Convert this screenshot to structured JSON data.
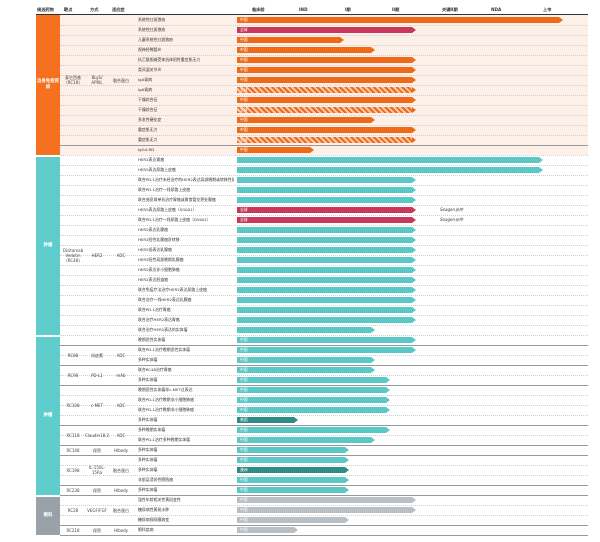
{
  "chart_data": {
    "type": "table",
    "title": "",
    "headers": [
      "候选药物",
      "靶点",
      "方式",
      "适应症",
      "临床前",
      "IND",
      "I期",
      "II期",
      "关键II期",
      "NDA",
      "上市"
    ],
    "phase_axis": [
      "临床前",
      "IND",
      "I期",
      "II期",
      "关键II期",
      "NDA",
      "上市"
    ],
    "groups": [
      {
        "name": "自身免疫疾病",
        "color": "#f5701f",
        "bar_color": "#ef6a18",
        "bg": "#fdf0e8"
      },
      {
        "name": "肿瘤",
        "color": "#5ecdcc",
        "bar_color": "#5bc8c8",
        "bg": "#ffffff"
      },
      {
        "name": "肿瘤",
        "color": "#5ecdcc",
        "bar_color": "#5bc8c8",
        "bg": "#ffffff"
      },
      {
        "name": "眼科",
        "color": "#9aa1a8",
        "bar_color": "#b8bfc5",
        "bg": "#ffffff"
      }
    ],
    "drug_rows": [
      {
        "drug": "泰它西普 (RC18)",
        "target": "BLyS/ APRIL",
        "modality": "融合蛋白",
        "from": 0,
        "to": 12
      },
      {
        "drug": "Disitamab Vedotin (RC48)",
        "target": "HER2",
        "modality": "ADC",
        "from": 15,
        "to": 32
      },
      {
        "drug": "RC88",
        "target": "间皮素",
        "modality": "ADC",
        "from": 33,
        "to": 34
      },
      {
        "drug": "RC98",
        "target": "PD-L1",
        "modality": "mAb",
        "from": 35,
        "to": 36
      },
      {
        "drug": "RC108",
        "target": "c-MET",
        "modality": "ADC",
        "from": 37,
        "to": 40
      },
      {
        "drug": "RC118",
        "target": "Claudin18.2",
        "modality": "ADC",
        "from": 41,
        "to": 42
      },
      {
        "drug": "RC148",
        "target": "保密",
        "modality": "Hibody",
        "from": 43,
        "to": 43
      },
      {
        "drug": "RC198",
        "target": "IL-15/IL-15Ra",
        "modality": "融合蛋白",
        "from": 44,
        "to": 46
      },
      {
        "drug": "RC238",
        "target": "保密",
        "modality": "Hibody",
        "from": 47,
        "to": 47
      },
      {
        "drug": "RC28",
        "target": "VEGF/FGF",
        "modality": "融合蛋白",
        "from": 48,
        "to": 50
      },
      {
        "drug": "RC218",
        "target": "保密",
        "modality": "Hibody",
        "from": 51,
        "to": 51
      }
    ],
    "series": [
      {
        "group": 0,
        "indication": "系统性红斑狼疮",
        "phase": 6.4,
        "label": "中国",
        "style": "solid"
      },
      {
        "group": 0,
        "indication": "系统性红斑狼疮",
        "phase": 3.5,
        "label": "全球",
        "style": "dark"
      },
      {
        "group": 0,
        "indication": "儿童系统性红斑狼疮",
        "phase": 2.1,
        "label": "中国",
        "style": "solid"
      },
      {
        "group": 0,
        "indication": "视神经脊髓炎",
        "phase": 2.7,
        "label": "中国",
        "style": "solid"
      },
      {
        "group": 0,
        "indication": "抗乙酰胆碱受体抗体阳性重症肌无力",
        "phase": 3.5,
        "label": "中国",
        "style": "solid"
      },
      {
        "group": 0,
        "indication": "类风湿关节炎",
        "phase": 3.5,
        "label": "中国",
        "style": "solid"
      },
      {
        "group": 0,
        "indication": "IgA肾病",
        "phase": 3.5,
        "label": "中国",
        "style": "solid"
      },
      {
        "group": 0,
        "indication": "IgA肾病",
        "phase": 3.5,
        "label": "全球",
        "style": "hatched"
      },
      {
        "group": 0,
        "indication": "干燥综合征",
        "phase": 3.5,
        "label": "中国",
        "style": "solid"
      },
      {
        "group": 0,
        "indication": "干燥综合征",
        "phase": 3.5,
        "label": "全球",
        "style": "hatched"
      },
      {
        "group": 0,
        "indication": "多发性硬化症",
        "phase": 2.7,
        "label": "中国",
        "style": "solid"
      },
      {
        "group": 0,
        "indication": "重症肌无力",
        "phase": 3.5,
        "label": "中国",
        "style": "solid"
      },
      {
        "group": 0,
        "indication": "重症肌无力",
        "phase": 3.5,
        "label": "全球",
        "style": "hatched"
      },
      {
        "group": 0,
        "indication": "IgG4-RD",
        "phase": 1.5,
        "label": "中国",
        "style": "solid"
      },
      {
        "group": 1,
        "indication": "HER2表达胃癌",
        "phase": 6.0,
        "label": "",
        "style": "solid"
      },
      {
        "group": 1,
        "indication": "HER2表达尿路上皮癌",
        "phase": 6.0,
        "label": "",
        "style": "solid"
      },
      {
        "group": 1,
        "indication": "联合PD-1治疗未经治疗的HER2表达局部晚期或转移性尿路上皮癌",
        "phase": 3.5,
        "label": "",
        "style": "solid"
      },
      {
        "group": 1,
        "indication": "联合PD-1治疗一线尿路上皮癌",
        "phase": 3.5,
        "label": "",
        "style": "solid"
      },
      {
        "group": 1,
        "indication": "联合曲妥珠单抗治疗胃癌或胃食管交界处腺癌",
        "phase": 3.5,
        "label": "",
        "style": "solid"
      },
      {
        "group": 1,
        "indication": "HER2表达尿路上皮癌（SG001）",
        "phase": 3.5,
        "label": "全球",
        "style": "dark"
      },
      {
        "group": 1,
        "indication": "联合PD-1治疗一线尿路上皮癌（DV001）",
        "phase": 3.5,
        "label": "全球",
        "style": "dark"
      },
      {
        "group": 1,
        "indication": "HER2表达乳腺癌",
        "phase": 3.5,
        "label": "",
        "style": "solid"
      },
      {
        "group": 1,
        "indication": "HER2阳性乳腺癌肝转移",
        "phase": 3.5,
        "label": "",
        "style": "solid"
      },
      {
        "group": 1,
        "indication": "HER2低表达乳腺癌",
        "phase": 3.5,
        "label": "",
        "style": "solid"
      },
      {
        "group": 1,
        "indication": "HER2阳性局部晚期乳腺癌",
        "phase": 3.5,
        "label": "",
        "style": "solid"
      },
      {
        "group": 1,
        "indication": "HER2表达非小细胞肺癌",
        "phase": 3.5,
        "label": "",
        "style": "solid"
      },
      {
        "group": 1,
        "indication": "HER2表达胆道癌",
        "phase": 3.5,
        "label": "",
        "style": "solid"
      },
      {
        "group": 1,
        "indication": "联合免疫疗法治疗HER2表达尿路上皮癌",
        "phase": 3.5,
        "label": "",
        "style": "solid"
      },
      {
        "group": 1,
        "indication": "联合治疗一线HER2表达乳腺癌",
        "phase": 3.5,
        "label": "",
        "style": "solid"
      },
      {
        "group": 1,
        "indication": "联合PD-1治疗胃癌",
        "phase": 3.5,
        "label": "",
        "style": "solid"
      },
      {
        "group": 1,
        "indication": "联合治疗HER2表达胃癌",
        "phase": 3.5,
        "label": "",
        "style": "solid"
      },
      {
        "group": 1,
        "indication": "联合治疗HER2表达的实体瘤",
        "phase": 2.7,
        "label": "",
        "style": "solid"
      },
      {
        "group": 2,
        "indication": "晚期恶性实体瘤",
        "phase": 3.5,
        "label": "中国",
        "style": "solid"
      },
      {
        "group": 2,
        "indication": "联合PD-1治疗晚期恶性实体瘤",
        "phase": 3.5,
        "label": "中国",
        "style": "solid"
      },
      {
        "group": 2,
        "indication": "多种实体瘤",
        "phase": 2.7,
        "label": "中国",
        "style": "solid"
      },
      {
        "group": 2,
        "indication": "联合RC48治疗胃癌",
        "phase": 2.7,
        "label": "中国",
        "style": "solid"
      },
      {
        "group": 2,
        "indication": "多种实体瘤",
        "phase": 3.0,
        "label": "中国",
        "style": "solid"
      },
      {
        "group": 2,
        "indication": "晚期恶性实体瘤伴c-MET过表达",
        "phase": 3.0,
        "label": "中国",
        "style": "solid"
      },
      {
        "group": 2,
        "indication": "联合PD-1治疗晚期非小细胞肺癌",
        "phase": 3.0,
        "label": "中国",
        "style": "solid"
      },
      {
        "group": 2,
        "indication": "联合PD-1治疗晚期非小细胞肺癌",
        "phase": 3.0,
        "label": "中国",
        "style": "solid"
      },
      {
        "group": 2,
        "indication": "多种实体瘤",
        "phase": 1.2,
        "label": "美国",
        "style": "dark"
      },
      {
        "group": 2,
        "indication": "多种晚期实体瘤",
        "phase": 3.0,
        "label": "中国",
        "style": "solid"
      },
      {
        "group": 2,
        "indication": "联合PD-1治疗多种晚期实体瘤",
        "phase": 2.7,
        "label": "中国",
        "style": "solid"
      },
      {
        "group": 2,
        "indication": "多种实体瘤",
        "phase": 2.2,
        "label": "中国",
        "style": "solid"
      },
      {
        "group": 2,
        "indication": "多种实体瘤",
        "phase": 2.2,
        "label": "中国",
        "style": "solid"
      },
      {
        "group": 2,
        "indication": "多种实体瘤",
        "phase": 2.2,
        "label": "澳洲",
        "style": "dark"
      },
      {
        "group": 2,
        "indication": "非肌层浸润性膀胱癌",
        "phase": 2.2,
        "label": "中国",
        "style": "solid"
      },
      {
        "group": 2,
        "indication": "多种实体瘤",
        "phase": 2.2,
        "label": "中国",
        "style": "solid"
      },
      {
        "group": 3,
        "indication": "湿性年龄相关性黄斑变性",
        "phase": 3.5,
        "label": "中国",
        "style": "solid"
      },
      {
        "group": 3,
        "indication": "糖尿病性黄斑水肿",
        "phase": 3.5,
        "label": "中国",
        "style": "solid"
      },
      {
        "group": 3,
        "indication": "糖尿病视网膜病变",
        "phase": 2.2,
        "label": "中国",
        "style": "solid"
      },
      {
        "group": 3,
        "indication": "眼科疾病",
        "phase": 1.2,
        "label": "中国",
        "style": "solid"
      }
    ],
    "notes": [
      {
        "row": 19,
        "text": "Seagen合作"
      },
      {
        "row": 20,
        "text": "Seagen合作"
      }
    ],
    "colors": {
      "orange_dark": "#c9385a",
      "teal_dark": "#2f8b86",
      "gray": "#b8bfc5"
    }
  }
}
